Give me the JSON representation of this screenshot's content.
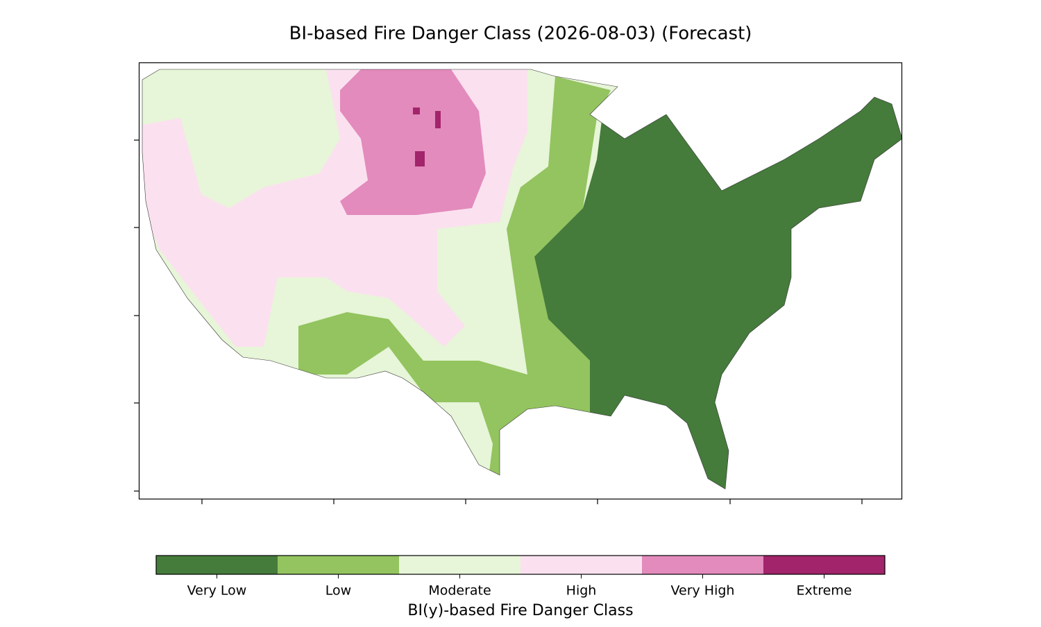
{
  "title": "BI-based Fire Danger Class (2026-08-03) (Forecast)",
  "colorbar": {
    "label": "BI(y)-based Fire Danger Class",
    "classes": [
      {
        "label": "Very Low",
        "color": "#457b3b"
      },
      {
        "label": "Low",
        "color": "#93c45f"
      },
      {
        "label": "Moderate",
        "color": "#e7f5d8"
      },
      {
        "label": "High",
        "color": "#fbe1ef"
      },
      {
        "label": "Very High",
        "color": "#e38bbd"
      },
      {
        "label": "Extreme",
        "color": "#a2246b"
      }
    ]
  }
}
